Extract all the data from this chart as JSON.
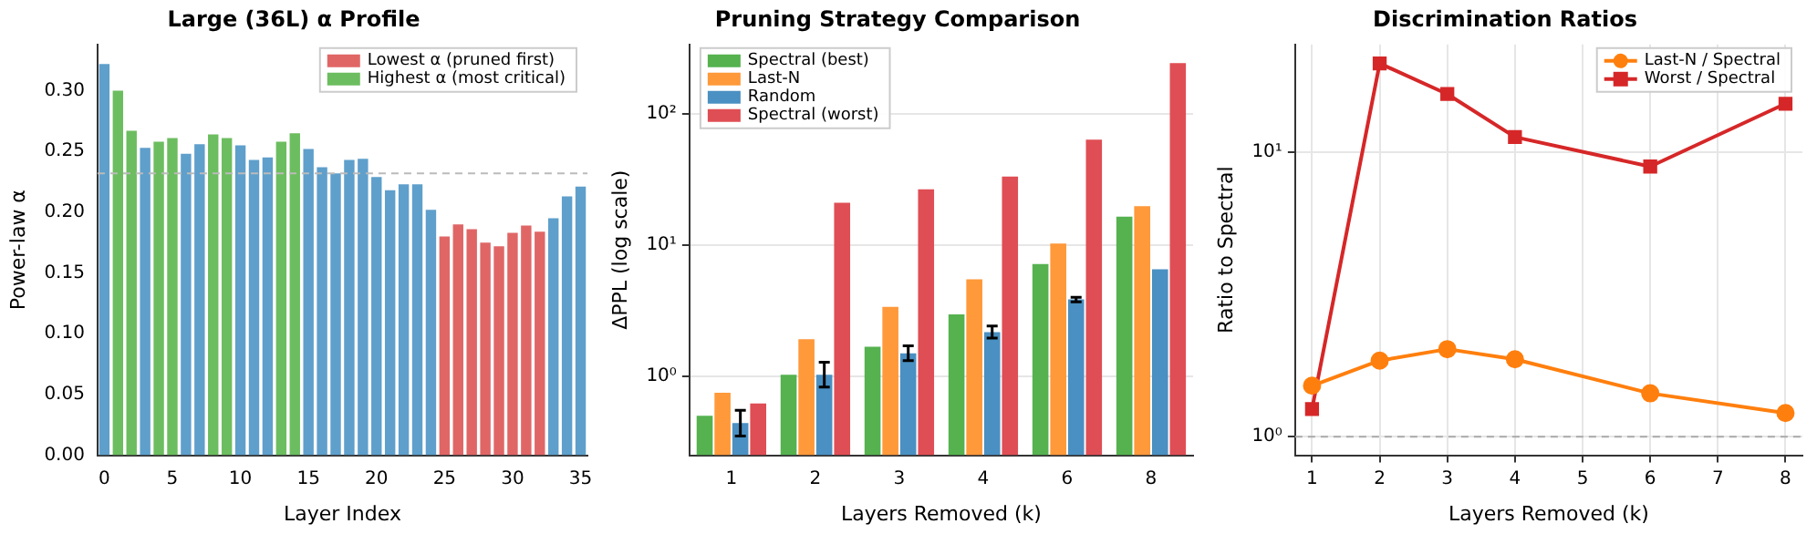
{
  "chart_data": [
    {
      "type": "bar",
      "title": "Large (36L) α Profile",
      "xlabel": "Layer Index",
      "ylabel": "Power-law α",
      "categories": [
        "0",
        null,
        null,
        null,
        null,
        "5",
        null,
        null,
        null,
        null,
        "10",
        null,
        null,
        null,
        null,
        "15",
        null,
        null,
        null,
        null,
        "20",
        null,
        null,
        null,
        null,
        "25",
        null,
        null,
        null,
        null,
        "30",
        null,
        null,
        null,
        null,
        "35"
      ],
      "series": [
        {
          "color": "#5f9fcb",
          "values": [
            0.322,
            null,
            null,
            0.253,
            null,
            null,
            0.248,
            0.256,
            null,
            null,
            0.255,
            0.243,
            0.245,
            null,
            null,
            0.252,
            0.237,
            0.232,
            0.243,
            0.244,
            0.229,
            0.218,
            0.223,
            0.223,
            0.202,
            null,
            null,
            null,
            null,
            null,
            null,
            null,
            null,
            0.195,
            0.213,
            0.221
          ]
        },
        {
          "name": "Lowest α (pruned first)",
          "color": "#e06666",
          "values": [
            null,
            null,
            null,
            null,
            null,
            null,
            null,
            null,
            null,
            null,
            null,
            null,
            null,
            null,
            null,
            null,
            null,
            null,
            null,
            null,
            null,
            null,
            null,
            null,
            null,
            0.18,
            0.19,
            0.186,
            0.175,
            0.172,
            0.183,
            0.189,
            0.184,
            null,
            null,
            null
          ]
        },
        {
          "name": "Highest α (most critical)",
          "color": "#6cbd5f",
          "values": [
            null,
            0.3,
            0.267,
            null,
            0.258,
            0.261,
            null,
            null,
            0.264,
            0.261,
            null,
            null,
            null,
            0.258,
            0.265,
            null,
            null,
            null,
            null,
            null,
            null,
            null,
            null,
            null,
            null,
            null,
            null,
            null,
            null,
            null,
            null,
            null,
            null,
            null,
            null,
            null
          ]
        }
      ],
      "ylim": [
        0,
        0.338
      ],
      "yticks": [
        {
          "value": 0,
          "label": "0.00"
        },
        {
          "value": 0.05,
          "label": "0.05"
        },
        {
          "value": 0.1,
          "label": "0.10"
        },
        {
          "value": 0.15,
          "label": "0.15"
        },
        {
          "value": 0.2,
          "label": "0.20"
        },
        {
          "value": 0.25,
          "label": "0.25"
        },
        {
          "value": 0.3,
          "label": "0.30"
        }
      ],
      "ref_lines": [
        {
          "axis": "y",
          "value": 0.232,
          "color": "#bbbbbb",
          "line_style": "dashed"
        }
      ],
      "grid": false,
      "legend": "top right"
    },
    {
      "type": "bar",
      "title": "Pruning Strategy Comparison",
      "xlabel": "Layers Removed (k)",
      "ylabel": "ΔPPL (log scale)",
      "categories": [
        "1",
        "2",
        "3",
        "4",
        "6",
        "8"
      ],
      "series": [
        {
          "name": "Spectral (best)",
          "color": "#55b24f",
          "values": [
            0.5,
            1.03,
            1.68,
            2.97,
            7.2,
            16.5
          ]
        },
        {
          "name": "Last-N",
          "color": "#ff993a",
          "values": [
            0.75,
            1.92,
            3.39,
            5.5,
            10.3,
            19.9
          ]
        },
        {
          "name": "Random",
          "color": "#4a90c2",
          "values": [
            0.44,
            1.03,
            1.5,
            2.17,
            3.86,
            6.56
          ],
          "errors": [
            [
              0.35,
              0.55
            ],
            [
              0.83,
              1.28
            ],
            [
              1.32,
              1.71
            ],
            [
              1.96,
              2.42
            ],
            [
              3.7,
              4.0
            ],
            null
          ]
        },
        {
          "name": "Spectral (worst)",
          "color": "#df4e54",
          "values": [
            0.62,
            21.1,
            26.7,
            33.4,
            64,
            245
          ]
        }
      ],
      "log": "y",
      "ylim": [
        0.25,
        340
      ],
      "yticks": [
        {
          "value": 1,
          "label": "10⁰"
        },
        {
          "value": 10,
          "label": "10¹"
        },
        {
          "value": 100,
          "label": "10²"
        }
      ],
      "grid": "y",
      "legend": "top left"
    },
    {
      "type": "line",
      "title": "Discrimination Ratios",
      "xlabel": "Layers Removed (k)",
      "ylabel": "Ratio to Spectral",
      "x": [
        1,
        2,
        3,
        4,
        6,
        8
      ],
      "series": [
        {
          "name": "Last-N / Spectral",
          "color": "#ff7f0e",
          "marker": "circle",
          "values": [
            1.51,
            1.85,
            2.03,
            1.87,
            1.42,
            1.21
          ]
        },
        {
          "name": "Worst / Spectral",
          "color": "#d62728",
          "marker": "square",
          "values": [
            1.25,
            20.5,
            16.0,
            11.3,
            8.9,
            14.8
          ]
        }
      ],
      "xlim": [
        0.75,
        8.25
      ],
      "xticks": [
        1,
        2,
        3,
        4,
        5,
        6,
        7,
        8
      ],
      "log": "y",
      "ylim": [
        0.86,
        23.9
      ],
      "yticks": [
        {
          "value": 1,
          "label": "10⁰"
        },
        {
          "value": 10,
          "label": "10¹"
        }
      ],
      "ref_lines": [
        {
          "axis": "y",
          "value": 1,
          "color": "#aaaaaa",
          "line_style": "dashed"
        }
      ],
      "grid": true,
      "legend": "top right"
    }
  ]
}
